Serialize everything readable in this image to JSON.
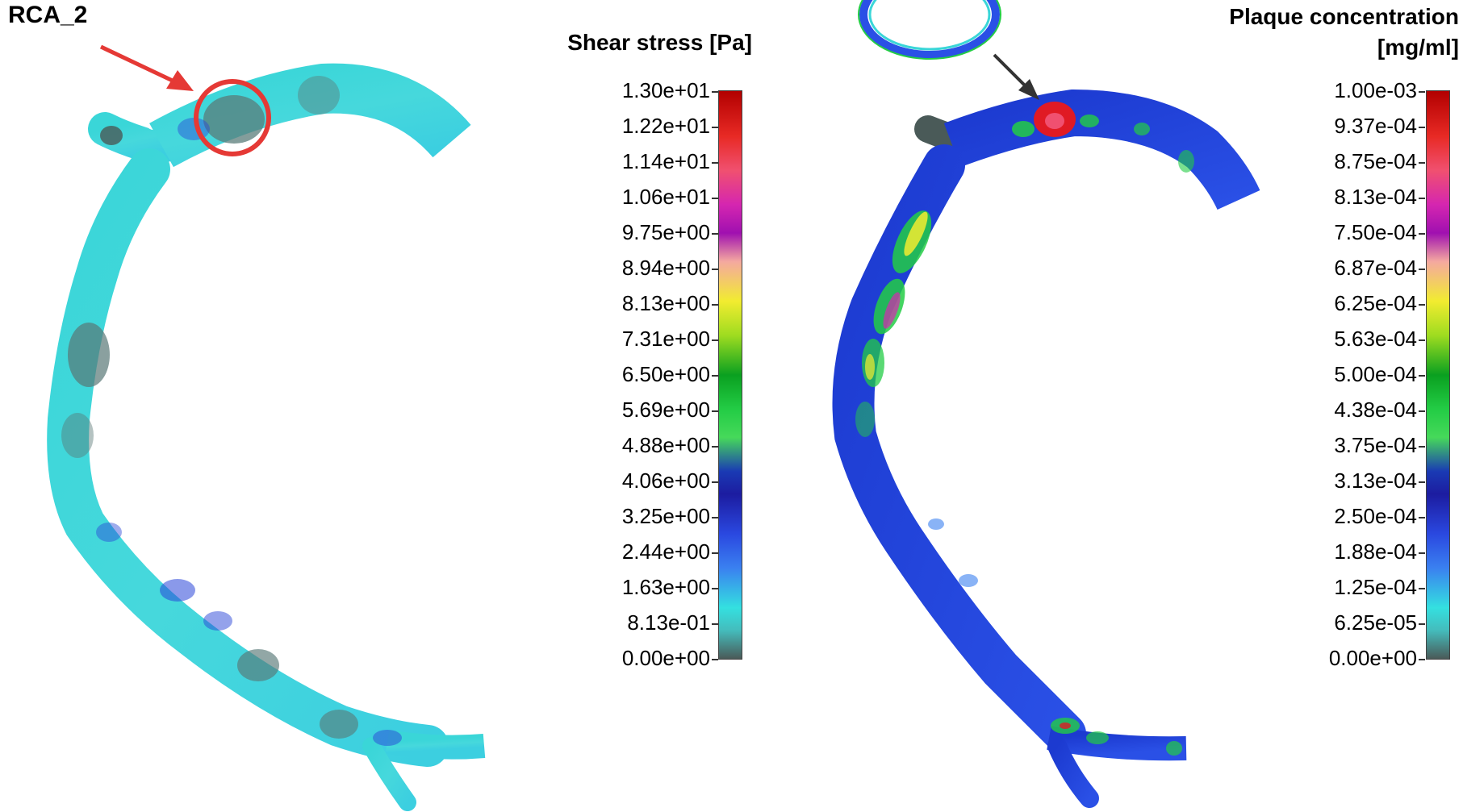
{
  "annotation": {
    "label": "RCA_2"
  },
  "left_colorbar": {
    "title": "Shear stress [Pa]",
    "ticks": [
      "1.30e+01",
      "1.22e+01",
      "1.14e+01",
      "1.06e+01",
      "9.75e+00",
      "8.94e+00",
      "8.13e+00",
      "7.31e+00",
      "6.50e+00",
      "5.69e+00",
      "4.88e+00",
      "4.06e+00",
      "3.25e+00",
      "2.44e+00",
      "1.63e+00",
      "8.13e-01",
      "0.00e+00"
    ]
  },
  "right_colorbar": {
    "title_line1": "Plaque concentration",
    "title_line2": "[mg/ml]",
    "ticks": [
      "1.00e-03",
      "9.37e-04",
      "8.75e-04",
      "8.13e-04",
      "7.50e-04",
      "6.87e-04",
      "6.25e-04",
      "5.63e-04",
      "5.00e-04",
      "4.38e-04",
      "3.75e-04",
      "3.13e-04",
      "2.50e-04",
      "1.88e-04",
      "1.25e-04",
      "6.25e-05",
      "0.00e+00"
    ]
  },
  "colors": {
    "annotation_red": "#e53935",
    "arrow_dark": "#333333",
    "vessel_cyan": "#40d6d6",
    "vessel_blue": "#1f3fd8"
  }
}
